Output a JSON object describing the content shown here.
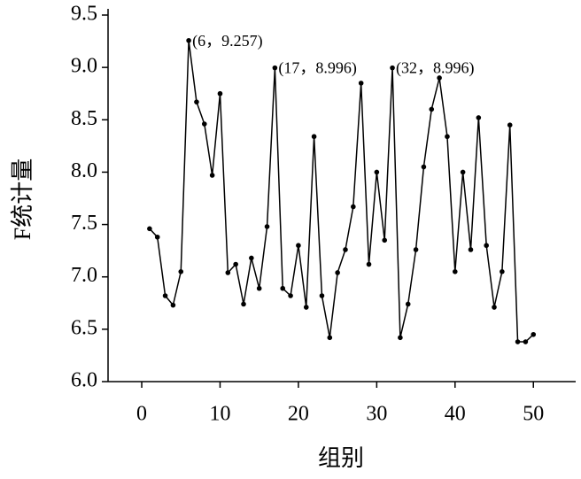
{
  "chart_data": {
    "type": "line",
    "xlabel": "组别",
    "ylabel": "F统计量",
    "x": [
      1,
      2,
      3,
      4,
      5,
      6,
      7,
      8,
      9,
      10,
      11,
      12,
      13,
      14,
      15,
      16,
      17,
      18,
      19,
      20,
      21,
      22,
      23,
      24,
      25,
      26,
      27,
      28,
      29,
      30,
      31,
      32,
      33,
      34,
      35,
      36,
      37,
      38,
      39,
      40,
      41,
      42,
      43,
      44,
      45,
      46,
      47,
      48,
      49,
      50
    ],
    "series": [
      {
        "color": "#000000",
        "values": [
          7.46,
          7.38,
          6.82,
          6.73,
          7.05,
          9.257,
          8.67,
          8.46,
          7.97,
          8.75,
          7.04,
          7.12,
          6.74,
          7.18,
          6.89,
          7.48,
          8.996,
          6.89,
          6.82,
          7.3,
          6.71,
          8.34,
          6.82,
          6.42,
          7.04,
          7.26,
          7.67,
          8.85,
          7.12,
          8.0,
          7.35,
          8.996,
          6.42,
          6.74,
          7.26,
          8.05,
          8.6,
          8.9,
          8.34,
          7.05,
          8.0,
          7.26,
          8.52,
          7.3,
          6.71,
          7.05,
          8.45,
          6.38,
          6.38,
          6.45
        ]
      }
    ],
    "xlim": [
      -4.3,
      55.4
    ],
    "xticks": [
      0,
      10,
      20,
      30,
      40,
      50
    ],
    "ylim": [
      6,
      9.5
    ],
    "yticks": [
      {
        "value": 6,
        "label": "6.0"
      },
      6.5,
      {
        "value": 7,
        "label": "7.0"
      },
      7.5,
      {
        "value": 8,
        "label": "8.0"
      },
      8.5,
      {
        "value": 9,
        "label": "9.0"
      },
      9.5
    ],
    "annotations": [
      {
        "text": "(6，9.257)",
        "x": 6,
        "y": 9.257
      },
      {
        "text": "(17，8.996)",
        "x": 17,
        "y": 8.996
      },
      {
        "text": "(32，8.996)",
        "x": 32,
        "y": 8.996
      }
    ]
  }
}
